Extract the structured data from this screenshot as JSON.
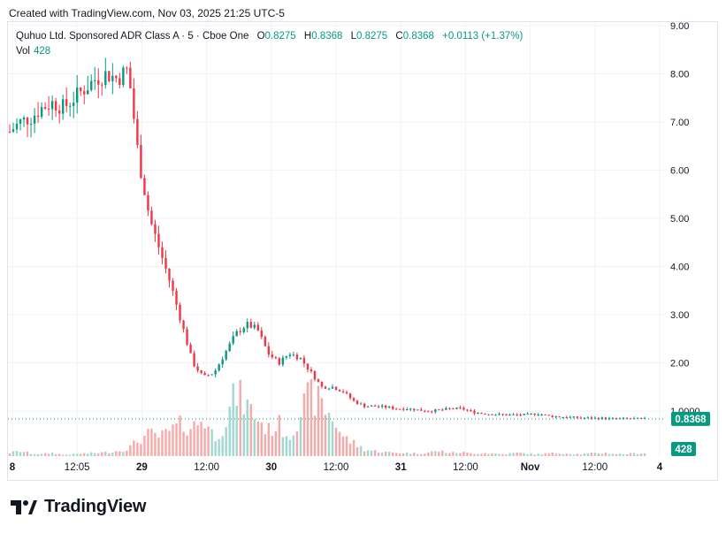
{
  "header": {
    "created_text": "Created with TradingView.com, Nov 03, 2025 21:25 UTC-5"
  },
  "legend": {
    "symbol": "Quhuo Ltd. Sponsored ADR Class A · 5 · Cboe One",
    "o_label": "O",
    "o_value": "0.8275",
    "h_label": "H",
    "h_value": "0.8368",
    "l_label": "L",
    "l_value": "0.8275",
    "c_label": "C",
    "c_value": "0.8368",
    "change": "+0.0113 (+1.37%)",
    "vol_label": "Vol",
    "vol_value": "428"
  },
  "logo": {
    "text": "TradingView"
  },
  "colors": {
    "up": "#089981",
    "down": "#f23645",
    "up_vol": "#9fd8cf",
    "down_vol": "#f7a9a9",
    "grid": "#f0f3fa"
  },
  "chart_data": {
    "type": "candlestick",
    "title": "Quhuo Ltd. Sponsored ADR Class A · 5 · Cboe One",
    "ylim": [
      0,
      9
    ],
    "y_ticks": [
      "9.00",
      "8.00",
      "7.00",
      "6.00",
      "5.00",
      "4.00",
      "3.00",
      "2.00",
      "1.0000"
    ],
    "x_ticks": [
      "8",
      "12:05",
      "29",
      "12:00",
      "30",
      "12:00",
      "31",
      "12:00",
      "Nov",
      "12:00",
      "4"
    ],
    "last_price_label": "0.8368",
    "last_volume_label": "428",
    "price_path": [
      6.8,
      7.0,
      7.1,
      7.3,
      7.4,
      7.3,
      7.5,
      7.7,
      7.9,
      8.0,
      7.9,
      8.1,
      6.2,
      5.0,
      4.3,
      3.6,
      2.8,
      2.0,
      1.7,
      1.8,
      2.2,
      2.6,
      2.8,
      2.7,
      2.2,
      2.0,
      2.2,
      2.1,
      1.8,
      1.5,
      1.5,
      1.4,
      1.2,
      1.1,
      1.1,
      1.08,
      1.05,
      1.05,
      1.02,
      1.0,
      1.02,
      1.05,
      1.05,
      0.98,
      0.95,
      0.93,
      0.92,
      0.92,
      0.92,
      0.95,
      0.9,
      0.88,
      0.87,
      0.86,
      0.85,
      0.85,
      0.84,
      0.84,
      0.84,
      0.8368
    ],
    "volume_path": [
      0.05,
      0.08,
      0.04,
      0.03,
      0.05,
      0.02,
      0.03,
      0.04,
      0.05,
      0.06,
      0.08,
      0.12,
      0.25,
      0.35,
      0.3,
      0.4,
      0.5,
      0.45,
      0.6,
      0.3,
      0.5,
      1.0,
      0.8,
      0.6,
      0.4,
      0.5,
      0.3,
      0.7,
      0.95,
      0.8,
      0.6,
      0.3,
      0.2,
      0.1,
      0.08,
      0.06,
      0.05,
      0.05,
      0.04,
      0.06,
      0.08,
      0.05,
      0.06,
      0.04,
      0.05,
      0.04,
      0.03,
      0.05,
      0.04,
      0.03,
      0.04,
      0.05,
      0.04,
      0.03,
      0.04,
      0.05,
      0.04,
      0.03,
      0.04,
      0.05
    ]
  }
}
